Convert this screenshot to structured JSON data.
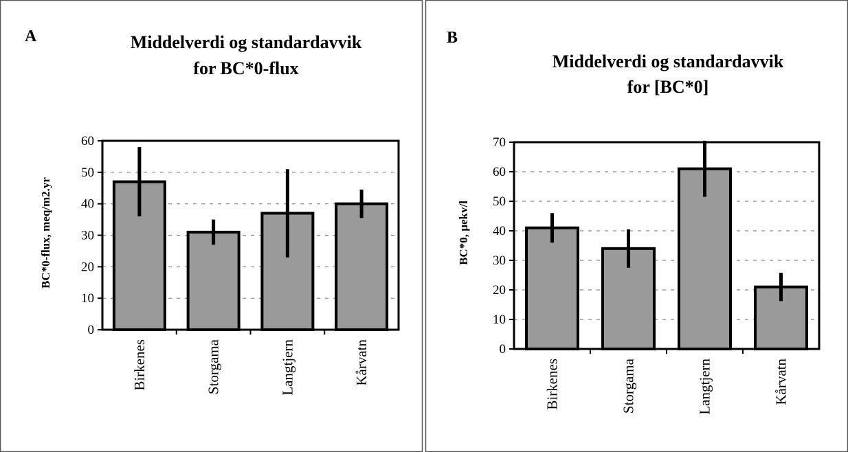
{
  "colors": {
    "bar_fill": "#9a9a9a",
    "bar_stroke": "#000000",
    "error_bar": "#000000",
    "grid": "#888888",
    "panel_border": "#555555"
  },
  "chart_data": [
    {
      "type": "bar",
      "panel_label": "A",
      "title": "Middelverdi og standardavvik",
      "subtitle": "for BC*0-flux",
      "xlabel": "",
      "ylabel": "BC*0-flux, meq/m2.yr",
      "categories": [
        "Birkenes",
        "Storgama",
        "Langtjern",
        "Kårvatn"
      ],
      "values": [
        47,
        31,
        37,
        40
      ],
      "errors": [
        11,
        4,
        14,
        4.5
      ],
      "ylim": [
        0,
        60
      ],
      "yticks": [
        0,
        10,
        20,
        30,
        40,
        50,
        60
      ],
      "grid": true
    },
    {
      "type": "bar",
      "panel_label": "B",
      "title": "Middelverdi og standardavvik",
      "subtitle": "for [BC*0]",
      "xlabel": "",
      "ylabel": "BC*0, µekv/l",
      "categories": [
        "Birkenes",
        "Storgama",
        "Langtjern",
        "Kårvatn"
      ],
      "values": [
        41,
        34,
        61,
        21
      ],
      "errors": [
        5,
        6.5,
        9.5,
        4.8
      ],
      "ylim": [
        0,
        70
      ],
      "yticks": [
        0,
        10,
        20,
        30,
        40,
        50,
        60,
        70
      ],
      "grid": true
    }
  ]
}
